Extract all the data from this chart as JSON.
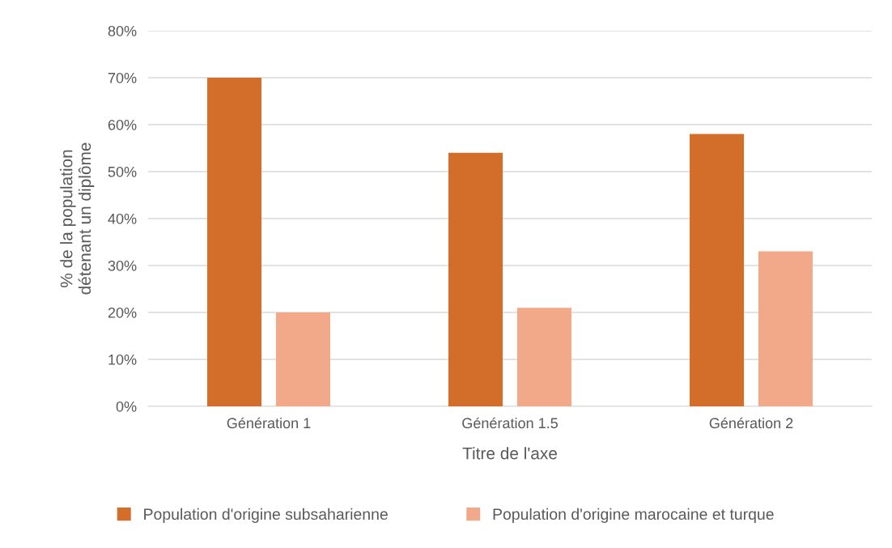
{
  "chart_data": {
    "type": "bar",
    "xlabel": "Titre de l'axe",
    "ylabel": "% de la population\ndétenant un diplôme",
    "categories": [
      "Génération 1",
      "Génération 1.5",
      "Génération 2"
    ],
    "series": [
      {
        "name": "Population d'origine subsaharienne",
        "color": "#d36e2a",
        "values": [
          70,
          54,
          58
        ]
      },
      {
        "name": "Population d'origine marocaine et turque",
        "color": "#f2a98a",
        "values": [
          20,
          21,
          33
        ]
      }
    ],
    "ylim": [
      0,
      80
    ],
    "yticks": [
      {
        "value": 0,
        "label": "0%"
      },
      {
        "value": 10,
        "label": "10%"
      },
      {
        "value": 20,
        "label": "20%"
      },
      {
        "value": 30,
        "label": "30%"
      },
      {
        "value": 40,
        "label": "40%"
      },
      {
        "value": 50,
        "label": "50%"
      },
      {
        "value": 60,
        "label": "60%"
      },
      {
        "value": 70,
        "label": "70%"
      },
      {
        "value": 80,
        "label": "80%"
      }
    ],
    "grid": "y",
    "legend": "bottom"
  }
}
